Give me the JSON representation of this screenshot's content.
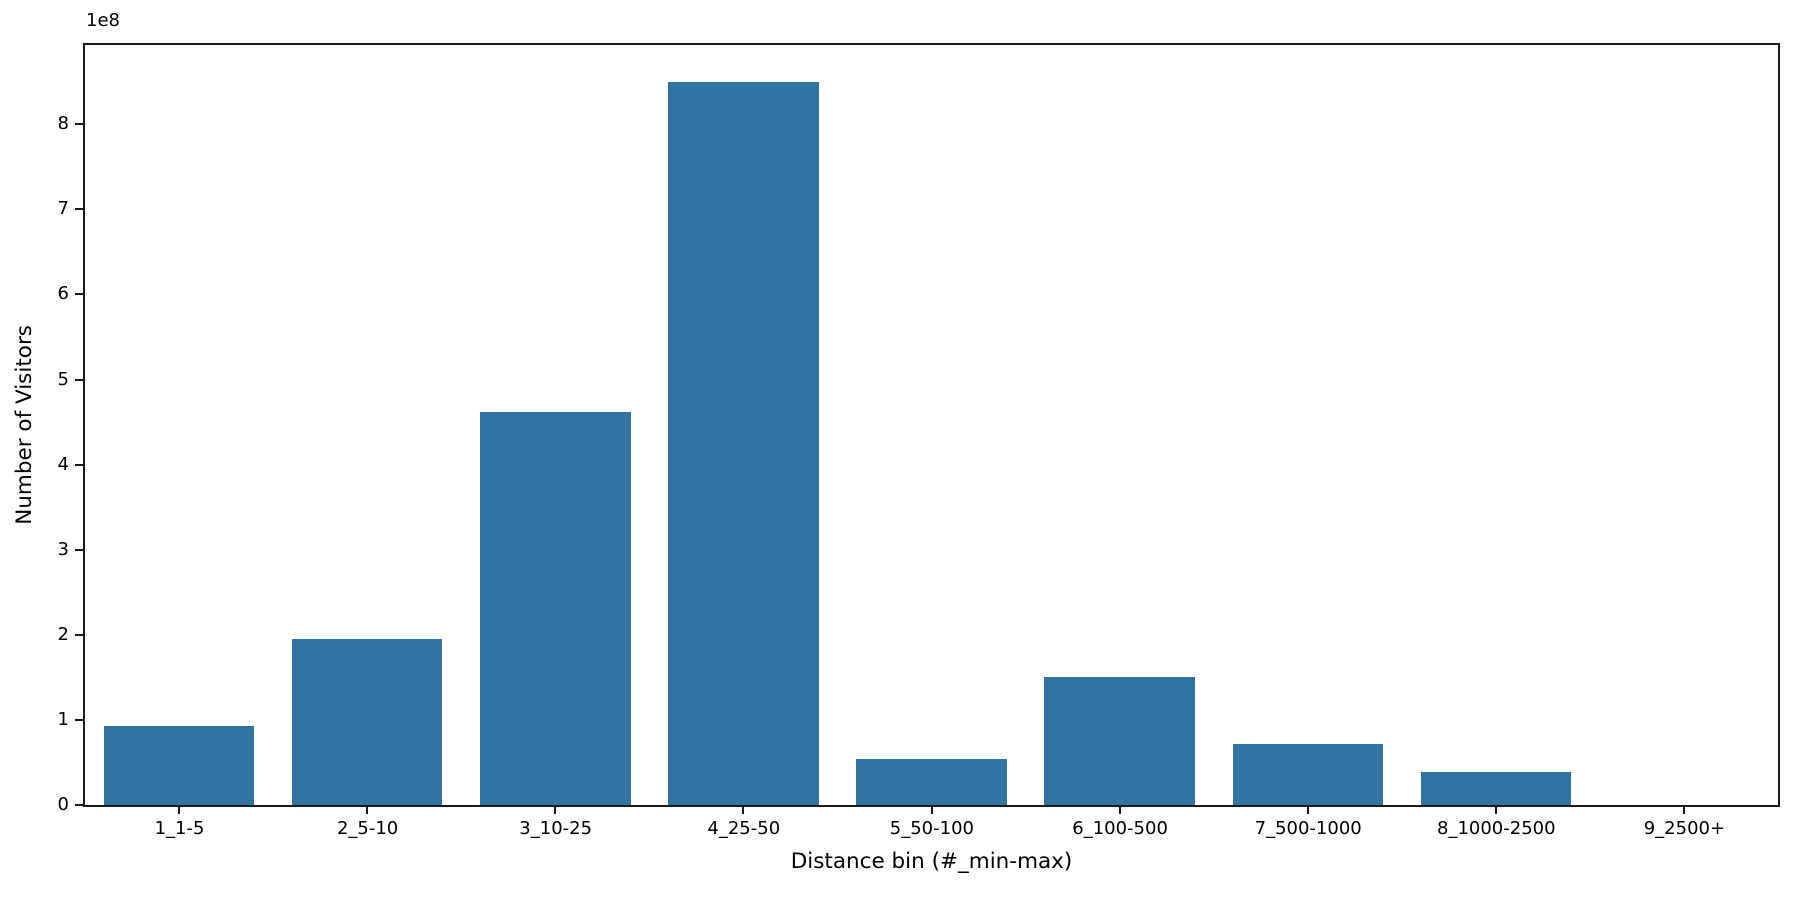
{
  "chart_data": {
    "type": "bar",
    "title": "",
    "xlabel": "Distance bin (#_min-max)",
    "ylabel": "Number of Visitors",
    "y_axis_offset_label": "1e8",
    "categories": [
      "1_1-5",
      "2_5-10",
      "3_10-25",
      "4_25-50",
      "5_50-100",
      "6_100-500",
      "7_500-1000",
      "8_1000-2500",
      "9_2500+"
    ],
    "values": [
      93000000,
      195000000,
      462000000,
      850000000,
      54000000,
      150000000,
      72000000,
      39000000,
      0
    ],
    "yticks": [
      0,
      1,
      2,
      3,
      4,
      5,
      6,
      7,
      8
    ],
    "ytick_unit": 100000000,
    "ylim": [
      0,
      893000000
    ],
    "bar_color": "#3274a1",
    "spine_color": "#1a1a1a",
    "grid": false,
    "legend": null
  }
}
